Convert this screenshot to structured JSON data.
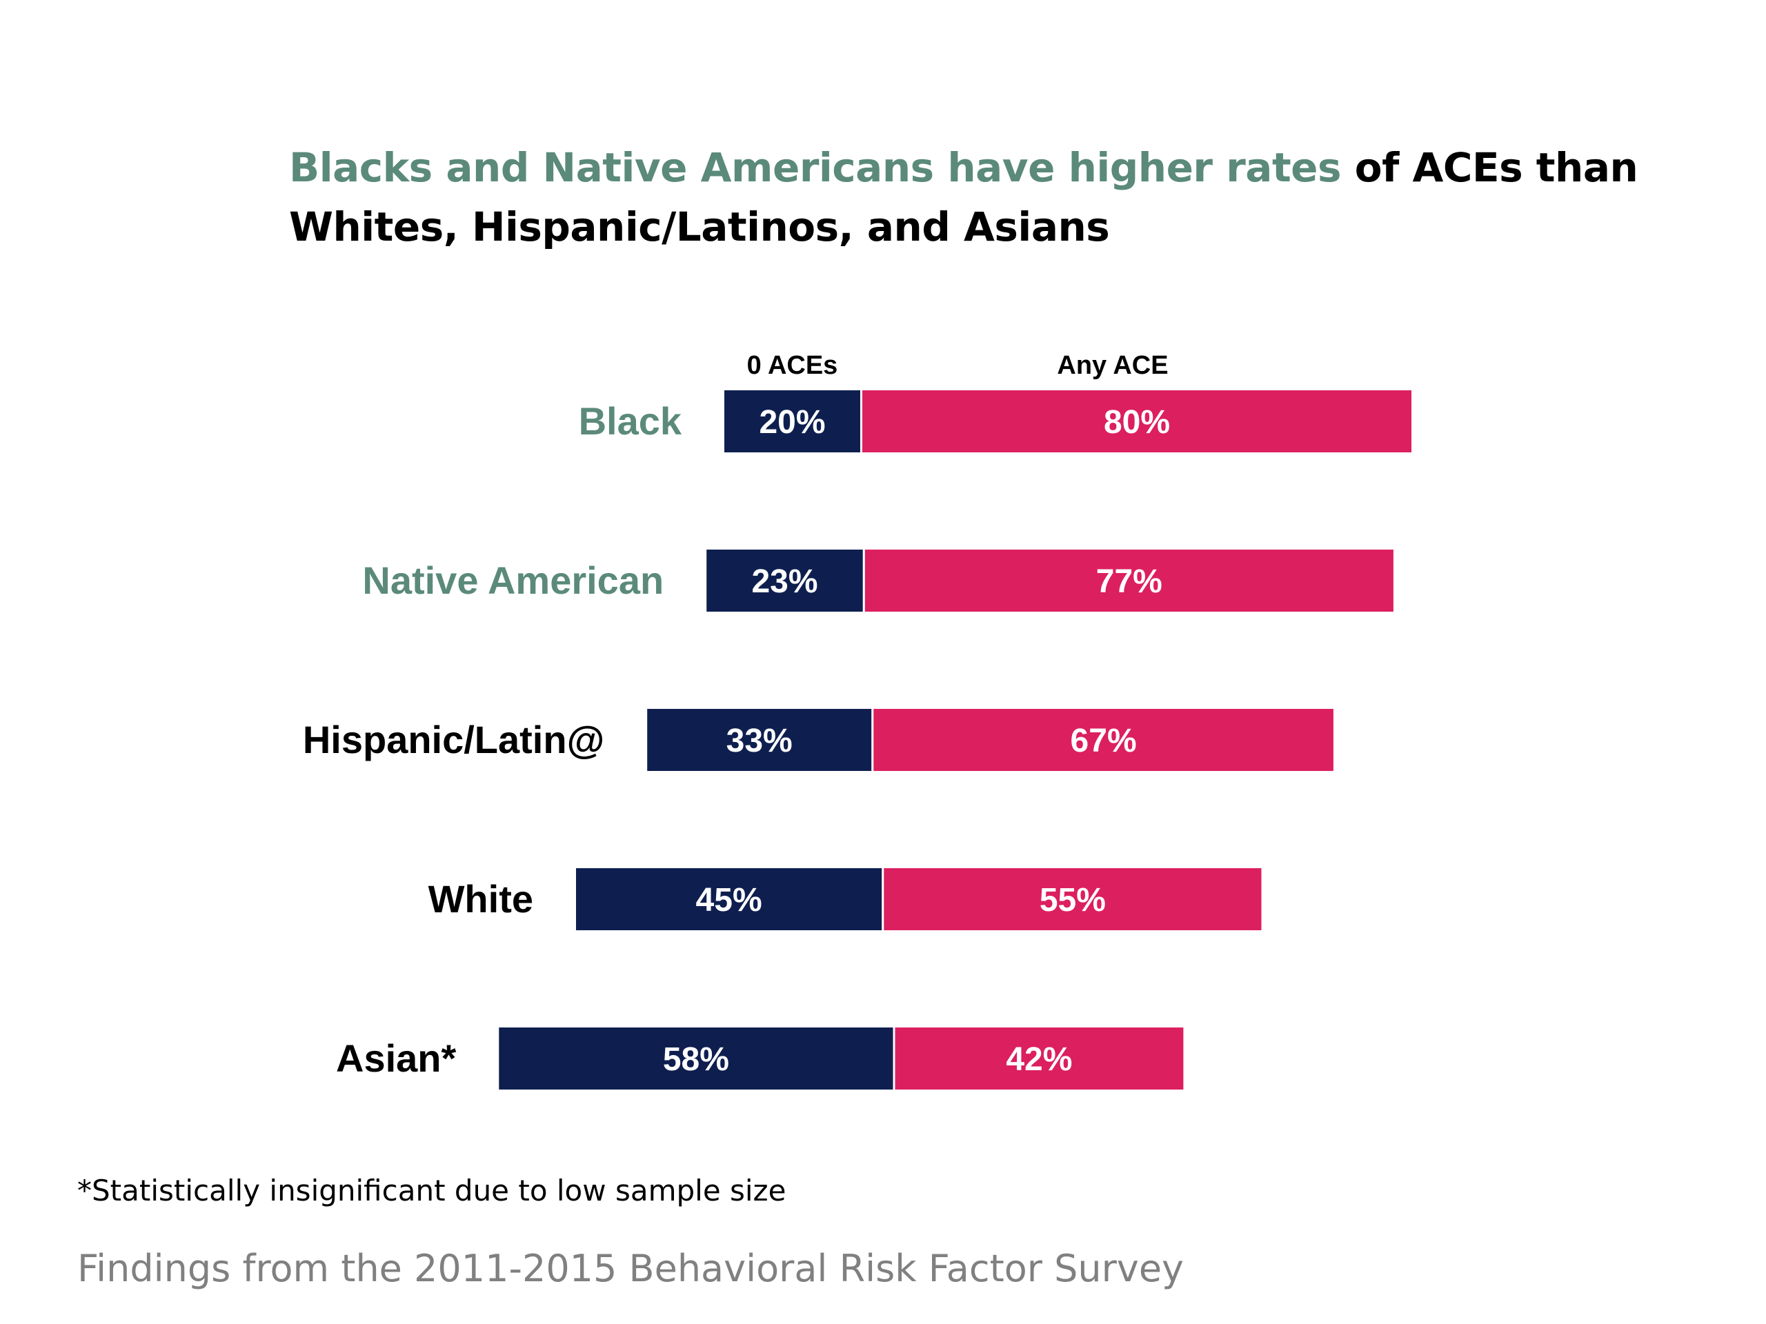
{
  "title": {
    "part1": "Blacks and Native Americans have higher rates",
    "part2": " of ACEs than",
    "line2": "Whites, Hispanic/Latinos, and Asians",
    "highlight_color": "#5b8a7a"
  },
  "footnote": "*Statistically insignificant due to low sample size",
  "source": "Findings from the 2011-2015 Behavioral Risk Factor Survey",
  "chart_data": {
    "type": "bar",
    "orientation": "horizontal",
    "stacked": true,
    "categories": [
      "Black",
      "Native American",
      "Hispanic/Latin@",
      "White",
      "Asian*"
    ],
    "category_colors": [
      "#5b8a7a",
      "#5b8a7a",
      "#000000",
      "#000000",
      "#000000"
    ],
    "series": [
      {
        "name": "0 ACEs",
        "values": [
          20,
          23,
          33,
          45,
          58
        ],
        "labels": [
          "20%",
          "23%",
          "33%",
          "45%",
          "58%"
        ],
        "color": "#0e1f4f"
      },
      {
        "name": "Any ACE",
        "values": [
          80,
          77,
          67,
          55,
          42
        ],
        "labels": [
          "80%",
          "77%",
          "67%",
          "55%",
          "42%"
        ],
        "color": "#dc1f5f"
      }
    ],
    "legend": "above-first-bar",
    "grid": false
  }
}
